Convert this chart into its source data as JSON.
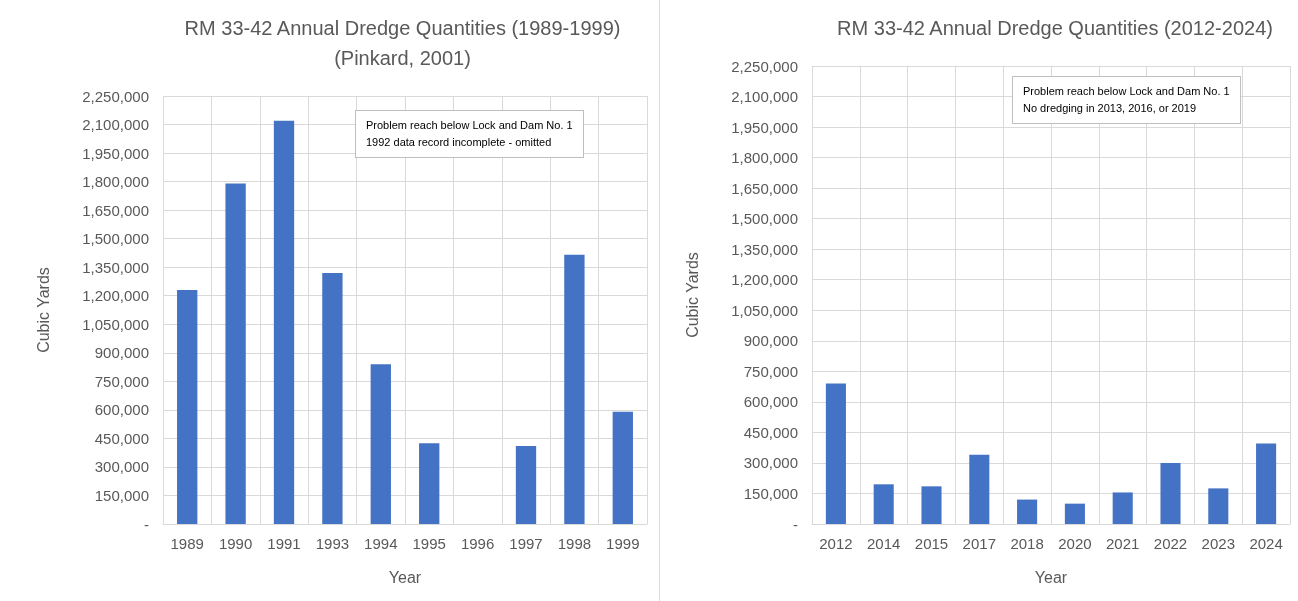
{
  "chart_data": [
    {
      "type": "bar",
      "title": "RM 33-42 Annual Dredge Quantities (1989-1999)",
      "subtitle": "(Pinkard, 2001)",
      "xlabel": "Year",
      "ylabel": "Cubic Yards",
      "categories": [
        "1989",
        "1990",
        "1991",
        "1993",
        "1994",
        "1995",
        "1996",
        "1997",
        "1998",
        "1999"
      ],
      "values": [
        1230000,
        1790000,
        2120000,
        1320000,
        840000,
        425000,
        0,
        410000,
        1415000,
        590000
      ],
      "color": "#4472c4",
      "ylim": [
        0,
        2250000
      ],
      "yticks": [
        {
          "value": 0,
          "label": "-"
        },
        {
          "value": 150000,
          "label": "150,000"
        },
        {
          "value": 300000,
          "label": "300,000"
        },
        {
          "value": 450000,
          "label": "450,000"
        },
        {
          "value": 600000,
          "label": "600,000"
        },
        {
          "value": 750000,
          "label": "750,000"
        },
        {
          "value": 900000,
          "label": "900,000"
        },
        {
          "value": 1050000,
          "label": "1,050,000"
        },
        {
          "value": 1200000,
          "label": "1,200,000"
        },
        {
          "value": 1350000,
          "label": "1,350,000"
        },
        {
          "value": 1500000,
          "label": "1,500,000"
        },
        {
          "value": 1650000,
          "label": "1,650,000"
        },
        {
          "value": 1800000,
          "label": "1,800,000"
        },
        {
          "value": 1950000,
          "label": "1,950,000"
        },
        {
          "value": 2100000,
          "label": "2,100,000"
        },
        {
          "value": 2250000,
          "label": "2,250,000"
        }
      ],
      "grid": true,
      "annotations": [
        "Problem reach below Lock and Dam No. 1",
        "1992 data record incomplete - omitted"
      ]
    },
    {
      "type": "bar",
      "title": "RM 33-42 Annual Dredge Quantities (2012-2024)",
      "xlabel": "Year",
      "ylabel": "Cubic Yards",
      "categories": [
        "2012",
        "2014",
        "2015",
        "2017",
        "2018",
        "2020",
        "2021",
        "2022",
        "2023",
        "2024"
      ],
      "values": [
        690000,
        195000,
        185000,
        340000,
        120000,
        100000,
        155000,
        300000,
        175000,
        395000
      ],
      "color": "#4472c4",
      "ylim": [
        0,
        2250000
      ],
      "yticks": [
        {
          "value": 0,
          "label": "-"
        },
        {
          "value": 150000,
          "label": "150,000"
        },
        {
          "value": 300000,
          "label": "300,000"
        },
        {
          "value": 450000,
          "label": "450,000"
        },
        {
          "value": 600000,
          "label": "600,000"
        },
        {
          "value": 750000,
          "label": "750,000"
        },
        {
          "value": 900000,
          "label": "900,000"
        },
        {
          "value": 1050000,
          "label": "1,050,000"
        },
        {
          "value": 1200000,
          "label": "1,200,000"
        },
        {
          "value": 1350000,
          "label": "1,350,000"
        },
        {
          "value": 1500000,
          "label": "1,500,000"
        },
        {
          "value": 1650000,
          "label": "1,650,000"
        },
        {
          "value": 1800000,
          "label": "1,800,000"
        },
        {
          "value": 1950000,
          "label": "1,950,000"
        },
        {
          "value": 2100000,
          "label": "2,100,000"
        },
        {
          "value": 2250000,
          "label": "2,250,000"
        }
      ],
      "grid": true,
      "annotations": [
        "Problem reach below Lock and Dam No. 1",
        "No dredging in 2013, 2016, or 2019"
      ]
    }
  ]
}
